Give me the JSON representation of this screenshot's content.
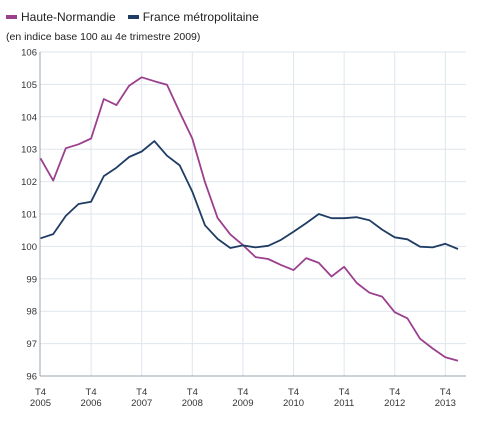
{
  "chart_data": {
    "type": "line",
    "subtitle": "(en indice base 100 au 4e trimestre 2009)",
    "ylim": [
      96,
      106
    ],
    "yticks": [
      96,
      97,
      98,
      99,
      100,
      101,
      102,
      103,
      104,
      105,
      106
    ],
    "x_quarter_labels": [
      "T4",
      "T4",
      "T4",
      "T4",
      "T4",
      "T4",
      "T4",
      "T4",
      "T4"
    ],
    "x_year_labels": [
      "2005",
      "2006",
      "2007",
      "2008",
      "2009",
      "2010",
      "2011",
      "2012",
      "2013"
    ],
    "x_start": "T4 2005",
    "x_end": "T4 2013",
    "grid": true,
    "legend_position": "top-left",
    "series": [
      {
        "name": "Haute-Normandie",
        "color": "#9b3f8f",
        "values": [
          102.72,
          102.03,
          103.03,
          103.15,
          103.33,
          104.55,
          104.36,
          104.96,
          105.22,
          105.1,
          104.99,
          104.14,
          103.33,
          101.98,
          100.88,
          100.37,
          100.04,
          99.67,
          99.61,
          99.43,
          99.27,
          99.64,
          99.49,
          99.07,
          99.37,
          98.87,
          98.57,
          98.45,
          97.97,
          97.78,
          97.15,
          96.85,
          96.58,
          96.47
        ]
      },
      {
        "name": "France métropolitaine",
        "color": "#1f3c64",
        "values": [
          100.25,
          100.38,
          100.94,
          101.31,
          101.38,
          102.17,
          102.43,
          102.76,
          102.93,
          103.25,
          102.8,
          102.5,
          101.69,
          100.65,
          100.23,
          99.95,
          100.03,
          99.97,
          100.02,
          100.2,
          100.45,
          100.72,
          101.0,
          100.87,
          100.87,
          100.9,
          100.81,
          100.52,
          100.28,
          100.22,
          99.99,
          99.97,
          100.08,
          99.92
        ]
      }
    ]
  }
}
